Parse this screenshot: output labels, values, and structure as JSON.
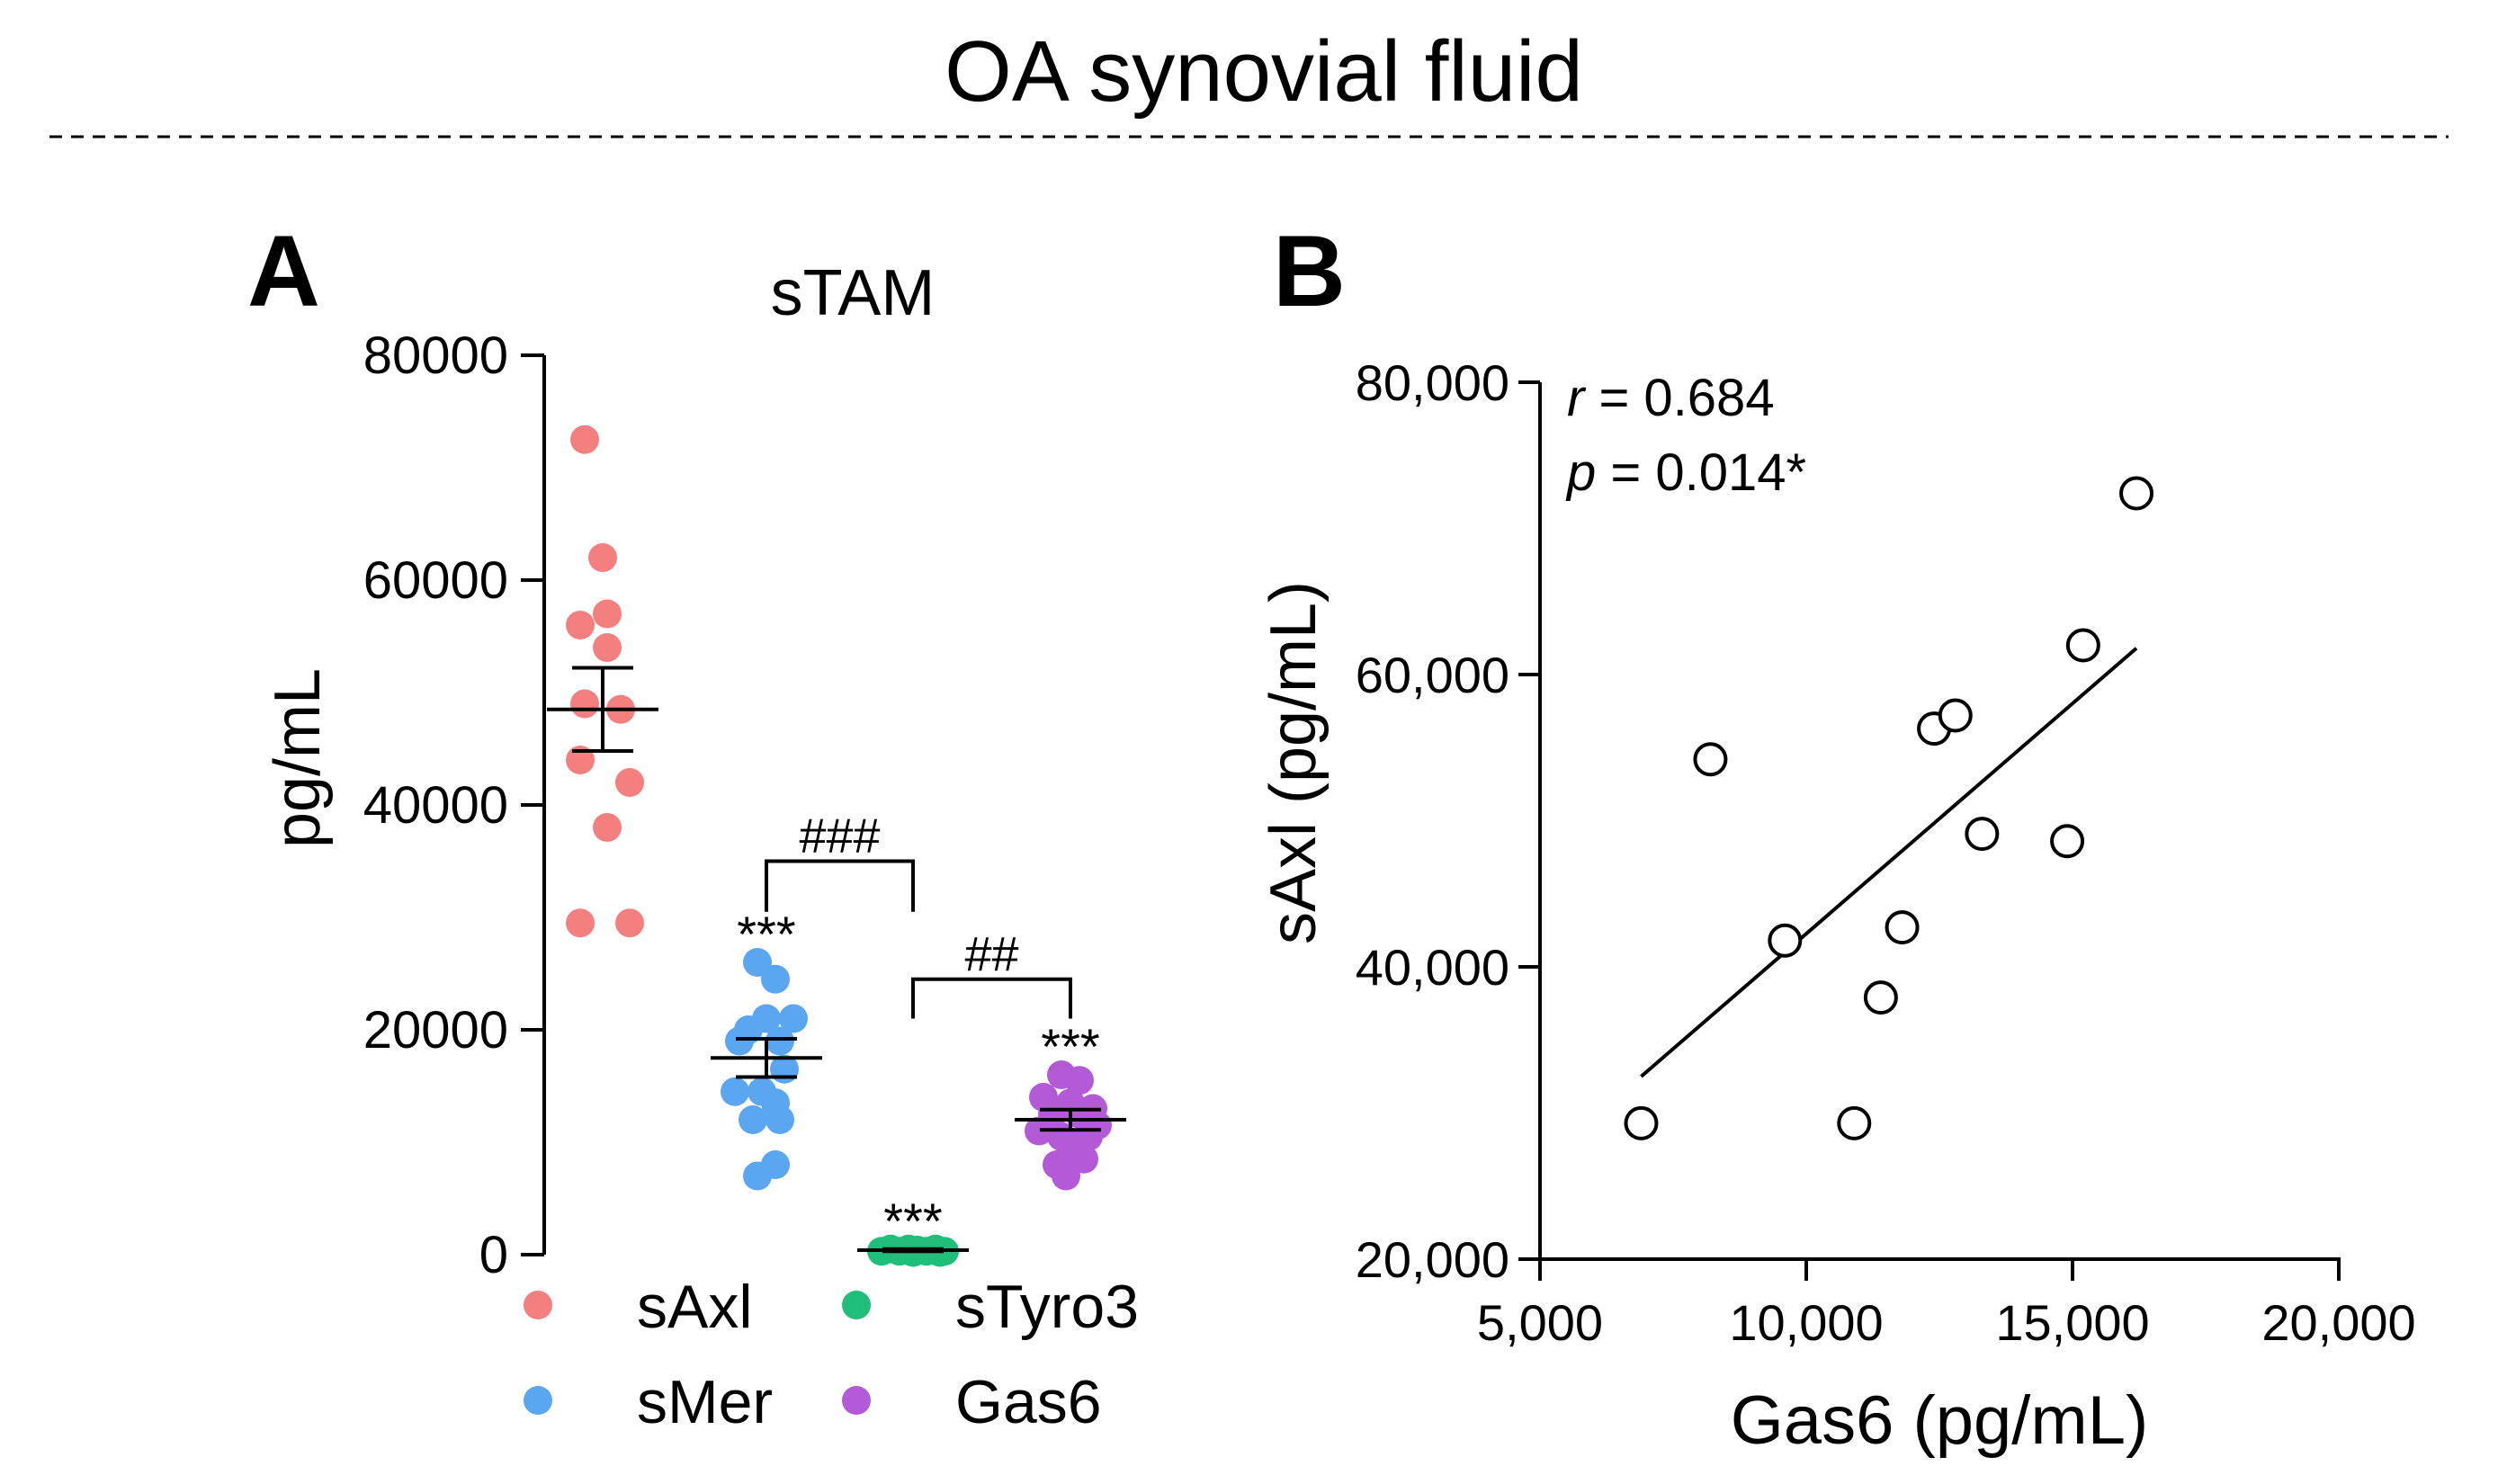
{
  "figure": {
    "title": "OA synovial fluid",
    "colors": {
      "text": "#000000",
      "axis": "#000000",
      "divider": "#000000",
      "sAxl": "#f47f7f",
      "sMer": "#5aa6f0",
      "sTyro3": "#1fbf7a",
      "Gas6": "#b45ad6"
    }
  },
  "panelA": {
    "label": "A",
    "chart_data": {
      "type": "scatter",
      "subtype": "dot-plot-mean-sem",
      "title": "sTAM",
      "xlabel": "",
      "ylabel": "pg/mL",
      "ylim": [
        0,
        80000
      ],
      "yticks": [
        0,
        20000,
        40000,
        60000,
        80000
      ],
      "ytick_labels": [
        "0",
        "20000",
        "40000",
        "60000",
        "80000"
      ],
      "series": [
        {
          "name": "sAxl",
          "color": "#f47f7f",
          "mean": 48500,
          "sem": 3700,
          "significance": "",
          "points": [
            {
              "x": -0.2,
              "y": 72500
            },
            {
              "x": 0.0,
              "y": 62000
            },
            {
              "x": -0.25,
              "y": 56000
            },
            {
              "x": 0.05,
              "y": 57000
            },
            {
              "x": 0.05,
              "y": 54000
            },
            {
              "x": -0.2,
              "y": 49000
            },
            {
              "x": 0.2,
              "y": 48500
            },
            {
              "x": -0.25,
              "y": 44000
            },
            {
              "x": 0.3,
              "y": 42000
            },
            {
              "x": 0.05,
              "y": 38000
            },
            {
              "x": -0.25,
              "y": 29500
            },
            {
              "x": 0.3,
              "y": 29500
            }
          ]
        },
        {
          "name": "sMer",
          "color": "#5aa6f0",
          "mean": 17500,
          "sem": 1700,
          "significance": "***",
          "points": [
            {
              "x": -0.1,
              "y": 26000
            },
            {
              "x": 0.1,
              "y": 24500
            },
            {
              "x": -0.3,
              "y": 19000
            },
            {
              "x": 0.0,
              "y": 21000
            },
            {
              "x": 0.3,
              "y": 21000
            },
            {
              "x": -0.2,
              "y": 20000
            },
            {
              "x": 0.15,
              "y": 19000
            },
            {
              "x": 0.2,
              "y": 16500
            },
            {
              "x": -0.35,
              "y": 14500
            },
            {
              "x": -0.05,
              "y": 14500
            },
            {
              "x": 0.1,
              "y": 13500
            },
            {
              "x": -0.15,
              "y": 12000
            },
            {
              "x": 0.15,
              "y": 12000
            },
            {
              "x": 0.1,
              "y": 8000
            },
            {
              "x": -0.1,
              "y": 7000
            }
          ]
        },
        {
          "name": "sTyro3",
          "color": "#1fbf7a",
          "mean": 400,
          "sem": 100,
          "significance": "***",
          "points": [
            {
              "x": -0.35,
              "y": 300
            },
            {
              "x": -0.25,
              "y": 500
            },
            {
              "x": -0.15,
              "y": 300
            },
            {
              "x": -0.05,
              "y": 500
            },
            {
              "x": 0.05,
              "y": 400
            },
            {
              "x": 0.15,
              "y": 300
            },
            {
              "x": 0.25,
              "y": 500
            },
            {
              "x": 0.35,
              "y": 300
            },
            {
              "x": 0.0,
              "y": 200
            },
            {
              "x": 0.3,
              "y": 200
            }
          ]
        },
        {
          "name": "Gas6",
          "color": "#b45ad6",
          "mean": 12000,
          "sem": 900,
          "significance": "***",
          "points": [
            {
              "x": -0.1,
              "y": 16000
            },
            {
              "x": 0.1,
              "y": 15500
            },
            {
              "x": -0.3,
              "y": 14000
            },
            {
              "x": 0.0,
              "y": 13500
            },
            {
              "x": 0.25,
              "y": 13000
            },
            {
              "x": -0.2,
              "y": 12500
            },
            {
              "x": 0.1,
              "y": 12500
            },
            {
              "x": 0.3,
              "y": 11500
            },
            {
              "x": -0.35,
              "y": 11000
            },
            {
              "x": -0.1,
              "y": 10500
            },
            {
              "x": 0.2,
              "y": 10500
            },
            {
              "x": 0.0,
              "y": 9000
            },
            {
              "x": -0.15,
              "y": 8000
            },
            {
              "x": 0.15,
              "y": 8500
            },
            {
              "x": -0.05,
              "y": 7000
            }
          ]
        }
      ],
      "brackets": [
        {
          "from": "sMer",
          "to": "sTyro3",
          "label": "###",
          "y": 35000,
          "tail": 4500
        },
        {
          "from": "sTyro3",
          "to": "Gas6",
          "label": "##",
          "y": 24500,
          "tail": 3500
        }
      ],
      "legend": {
        "position": "bottom",
        "items": [
          "sAxl",
          "sTyro3",
          "sMer",
          "Gas6"
        ]
      }
    }
  },
  "panelB": {
    "label": "B",
    "chart_data": {
      "type": "scatter",
      "title": "",
      "xlabel": "Gas6 (pg/mL)",
      "ylabel": "sAxl (pg/mL)",
      "xlim": [
        5000,
        20000
      ],
      "ylim": [
        20000,
        80000
      ],
      "xticks": [
        5000,
        10000,
        15000,
        20000
      ],
      "xtick_labels": [
        "5,000",
        "10,000",
        "15,000",
        "20,000"
      ],
      "yticks": [
        20000,
        40000,
        60000,
        80000
      ],
      "ytick_labels": [
        "20,000",
        "40,000",
        "60,000",
        "80,000"
      ],
      "points": [
        {
          "x": 6900,
          "y": 29300
        },
        {
          "x": 8200,
          "y": 54200
        },
        {
          "x": 9600,
          "y": 41800
        },
        {
          "x": 10900,
          "y": 29300
        },
        {
          "x": 11400,
          "y": 37900
        },
        {
          "x": 11800,
          "y": 42700
        },
        {
          "x": 12400,
          "y": 56300
        },
        {
          "x": 12800,
          "y": 57200
        },
        {
          "x": 13300,
          "y": 49100
        },
        {
          "x": 14900,
          "y": 48600
        },
        {
          "x": 15200,
          "y": 62000
        },
        {
          "x": 16200,
          "y": 72400
        }
      ],
      "fit_line": {
        "x": [
          6900,
          16200
        ],
        "y": [
          32500,
          61800
        ]
      },
      "annotations": {
        "r_symbol": "r",
        "r_text": " = 0.684",
        "p_symbol": "p",
        "p_text": " = 0.014*"
      }
    }
  }
}
